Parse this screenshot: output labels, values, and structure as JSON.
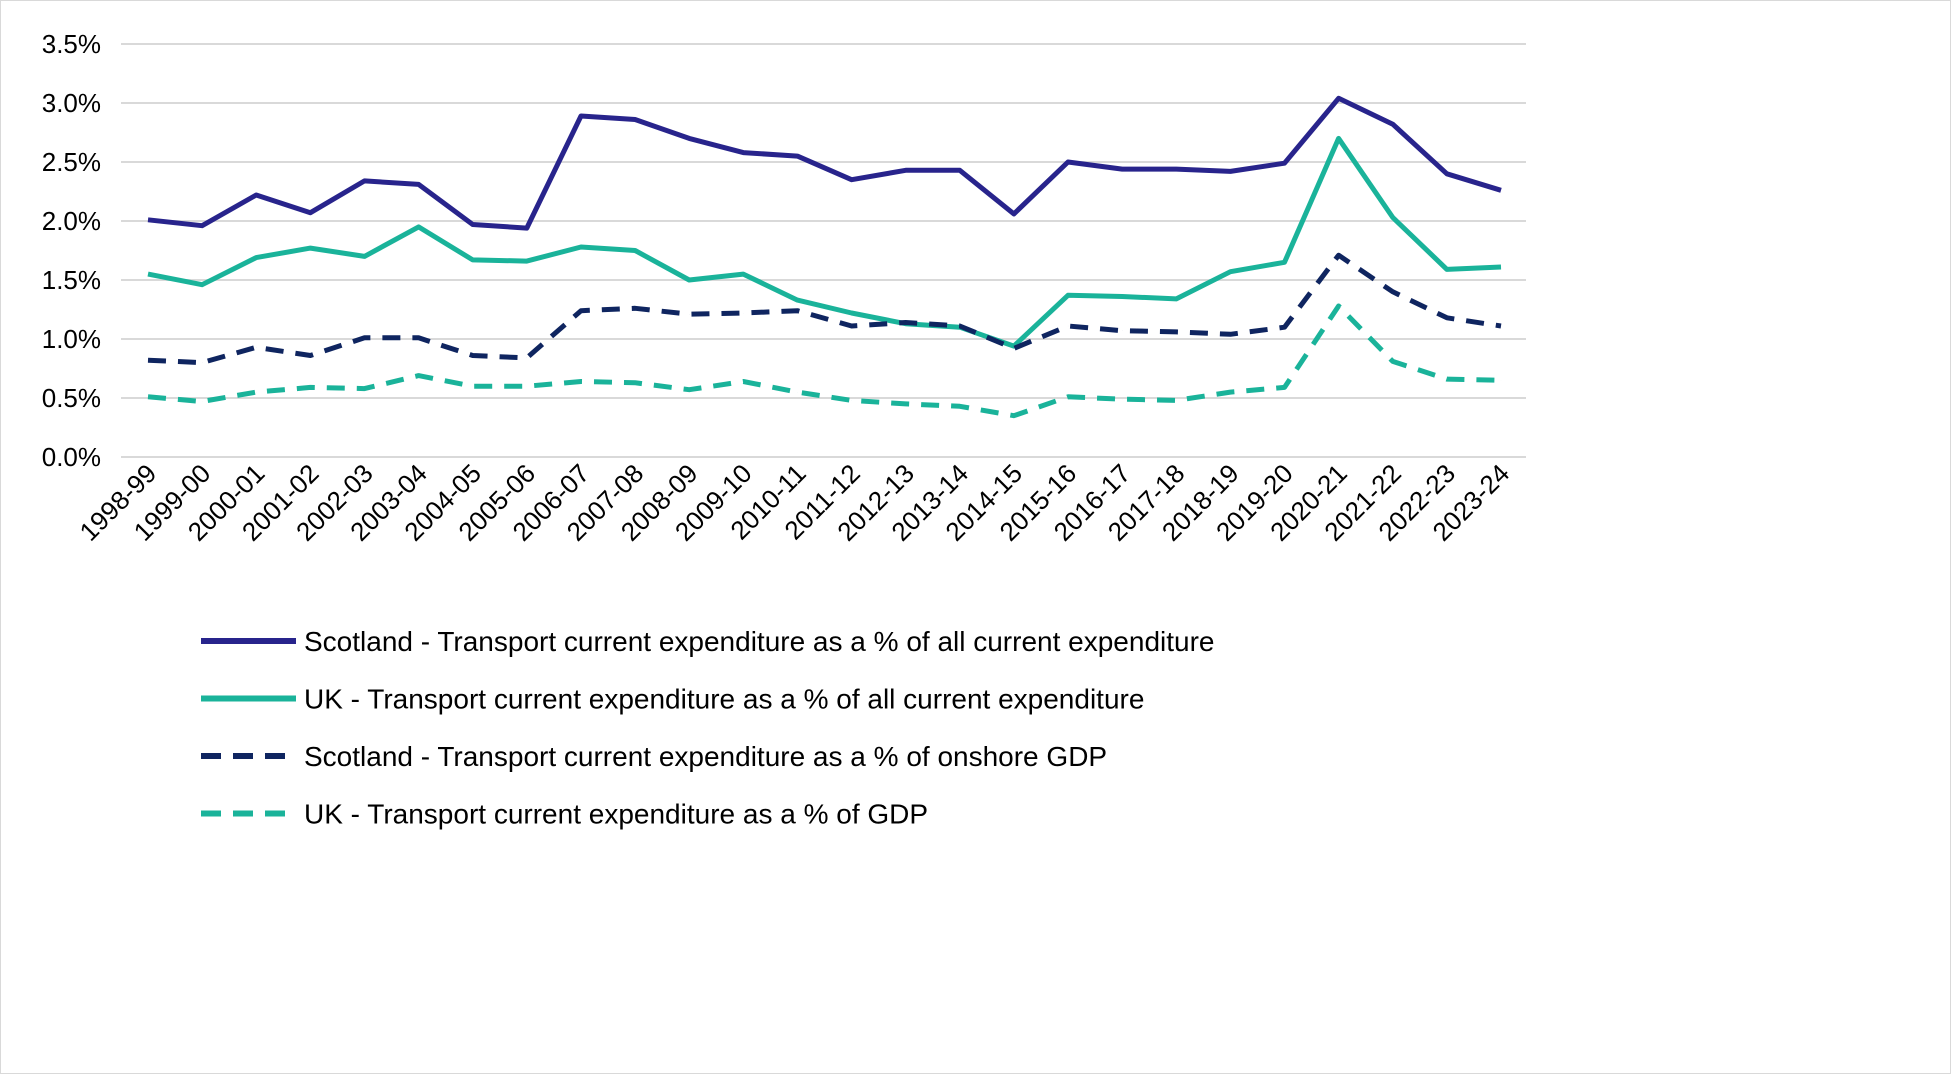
{
  "chart_data": {
    "type": "line",
    "title": "",
    "xlabel": "",
    "ylabel": "",
    "ylim": [
      0,
      3.5
    ],
    "ytick_step": 0.5,
    "ytick_format": "percent-1dp",
    "grid": "horizontal",
    "legend_position": "bottom",
    "categories": [
      "1998-99",
      "1999-00",
      "2000-01",
      "2001-02",
      "2002-03",
      "2003-04",
      "2004-05",
      "2005-06",
      "2006-07",
      "2007-08",
      "2008-09",
      "2009-10",
      "2010-11",
      "2011-12",
      "2012-13",
      "2013-14",
      "2014-15",
      "2015-16",
      "2016-17",
      "2017-18",
      "2018-19",
      "2019-20",
      "2020-21",
      "2021-22",
      "2022-23",
      "2023-24"
    ],
    "series": [
      {
        "name": "Scotland - Transport current expenditure as a % of all current expenditure",
        "color": "#28248c",
        "dash": false,
        "values": [
          2.01,
          1.96,
          2.22,
          2.07,
          2.34,
          2.31,
          1.97,
          1.94,
          2.89,
          2.86,
          2.7,
          2.58,
          2.55,
          2.35,
          2.43,
          2.43,
          2.06,
          2.5,
          2.44,
          2.44,
          2.42,
          2.49,
          3.04,
          2.82,
          2.4,
          2.26
        ]
      },
      {
        "name": "UK - Transport current expenditure as a % of all current expenditure",
        "color": "#1ab39a",
        "dash": false,
        "values": [
          1.55,
          1.46,
          1.69,
          1.77,
          1.7,
          1.95,
          1.67,
          1.66,
          1.78,
          1.75,
          1.5,
          1.55,
          1.33,
          1.22,
          1.13,
          1.1,
          0.94,
          1.37,
          1.36,
          1.34,
          1.57,
          1.65,
          2.7,
          2.03,
          1.59,
          1.61
        ]
      },
      {
        "name": "Scotland - Transport current expenditure as a % of onshore GDP",
        "color": "#0f2560",
        "dash": true,
        "values": [
          0.82,
          0.8,
          0.93,
          0.86,
          1.01,
          1.01,
          0.86,
          0.84,
          1.24,
          1.26,
          1.21,
          1.22,
          1.24,
          1.11,
          1.14,
          1.11,
          0.92,
          1.11,
          1.07,
          1.06,
          1.04,
          1.1,
          1.71,
          1.4,
          1.18,
          1.11
        ]
      },
      {
        "name": "UK - Transport current expenditure as a % of GDP",
        "color": "#1ab39a",
        "dash": true,
        "values": [
          0.51,
          0.47,
          0.55,
          0.59,
          0.58,
          0.69,
          0.6,
          0.6,
          0.64,
          0.63,
          0.57,
          0.64,
          0.55,
          0.48,
          0.45,
          0.43,
          0.35,
          0.51,
          0.49,
          0.48,
          0.55,
          0.59,
          1.28,
          0.81,
          0.66,
          0.65
        ]
      }
    ]
  }
}
